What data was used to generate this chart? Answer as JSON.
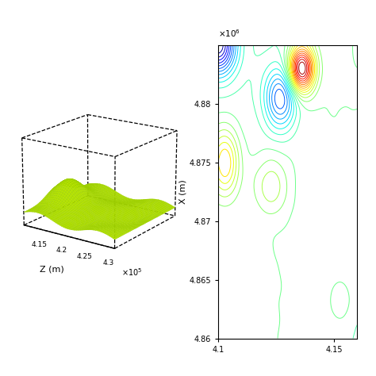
{
  "left_panel": {
    "z_ticks_labels": [
      "4.15",
      "4.2",
      "4.25",
      "4.3"
    ],
    "x_label": "Z (m)",
    "scale_label": "x 10^5"
  },
  "right_panel": {
    "xlim": [
      41000.0,
      41600.0
    ],
    "ylim": [
      4860000.0,
      4885000.0
    ],
    "x_ticks": [
      41000.0,
      41500.0
    ],
    "x_tick_labels": [
      "4.1",
      "4.15"
    ],
    "y_ticks": [
      4860000.0,
      4865000.0,
      4870000.0,
      4875000.0,
      4880000.0
    ],
    "y_tick_labels": [
      "4.86",
      "4.865",
      "4.87",
      "4.875",
      "4.88"
    ],
    "ylabel": "X (m)",
    "scale_label": "x 10^6"
  },
  "surface_color": "#b8e600",
  "surface_edge_color": "#99cc00",
  "fig_bg": "#ffffff"
}
